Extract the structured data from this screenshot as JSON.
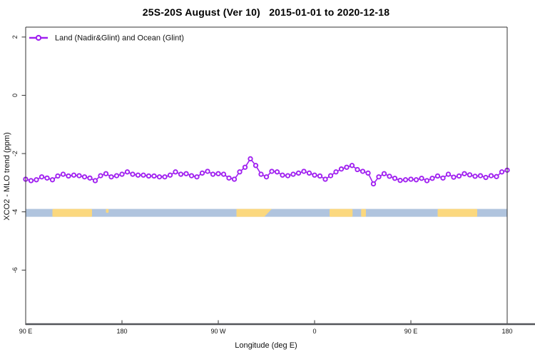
{
  "header": {
    "title": "25S-20S August (Ver 10)   2015-01-01 to 2020-12-18"
  },
  "legend": {
    "label": "Land (Nadir&Glint) and Ocean (Glint)",
    "marker": "open-circle",
    "position": "top-left"
  },
  "colors": {
    "series": "#A020F0",
    "ocean": "#B0C4DE",
    "land": "#FBD87E",
    "axis_line": "#54565a",
    "box": "#333333"
  },
  "chart_data": {
    "type": "line",
    "title": "25S-20S August (Ver 10)   2015-01-01 to 2020-12-18",
    "xlabel": "Longitude (deg E)",
    "ylabel": "XCO2 - MLO trend (ppm)",
    "xlim": [
      90,
      540
    ],
    "ylim": [
      -7.88,
      2.34
    ],
    "grid": false,
    "legend_position": "top-left",
    "x_ticks": [
      {
        "value": 90,
        "label": "90 E"
      },
      {
        "value": 180,
        "label": "180"
      },
      {
        "value": 270,
        "label": "90 W"
      },
      {
        "value": 360,
        "label": "0"
      },
      {
        "value": 450,
        "label": "90 E"
      },
      {
        "value": 540,
        "label": "180"
      }
    ],
    "y_ticks": [
      {
        "value": 2,
        "label": "2"
      },
      {
        "value": 0,
        "label": "0"
      },
      {
        "value": -2,
        "label": "-2"
      },
      {
        "value": -4,
        "label": "-4"
      },
      {
        "value": -6,
        "label": "-6"
      }
    ],
    "series": [
      {
        "name": "Land (Nadir&Glint) and Ocean (Glint)",
        "color": "#A020F0",
        "marker": "open-circle",
        "x": [
          90,
          95,
          100,
          105,
          110,
          115,
          120,
          125,
          130,
          135,
          140,
          145,
          150,
          155,
          160,
          165,
          170,
          175,
          180,
          185,
          190,
          195,
          200,
          205,
          210,
          215,
          220,
          225,
          230,
          235,
          240,
          245,
          250,
          255,
          260,
          265,
          270,
          275,
          280,
          285,
          290,
          295,
          300,
          305,
          310,
          315,
          320,
          325,
          330,
          335,
          340,
          345,
          350,
          355,
          360,
          365,
          370,
          375,
          380,
          385,
          390,
          395,
          400,
          405,
          410,
          415,
          420,
          425,
          430,
          435,
          440,
          445,
          450,
          455,
          460,
          465,
          470,
          475,
          480,
          485,
          490,
          495,
          500,
          505,
          510,
          515,
          520,
          525,
          530,
          535,
          540
        ],
        "y": [
          -2.88,
          -2.93,
          -2.9,
          -2.8,
          -2.84,
          -2.9,
          -2.77,
          -2.71,
          -2.77,
          -2.74,
          -2.76,
          -2.8,
          -2.84,
          -2.93,
          -2.76,
          -2.69,
          -2.8,
          -2.76,
          -2.71,
          -2.63,
          -2.71,
          -2.74,
          -2.74,
          -2.77,
          -2.77,
          -2.8,
          -2.8,
          -2.74,
          -2.63,
          -2.71,
          -2.69,
          -2.76,
          -2.8,
          -2.67,
          -2.61,
          -2.71,
          -2.69,
          -2.71,
          -2.84,
          -2.88,
          -2.63,
          -2.47,
          -2.18,
          -2.41,
          -2.71,
          -2.8,
          -2.61,
          -2.63,
          -2.74,
          -2.76,
          -2.71,
          -2.67,
          -2.61,
          -2.67,
          -2.74,
          -2.77,
          -2.88,
          -2.76,
          -2.63,
          -2.53,
          -2.47,
          -2.41,
          -2.55,
          -2.61,
          -2.67,
          -3.04,
          -2.8,
          -2.69,
          -2.78,
          -2.85,
          -2.92,
          -2.9,
          -2.88,
          -2.9,
          -2.85,
          -2.93,
          -2.85,
          -2.77,
          -2.84,
          -2.71,
          -2.81,
          -2.77,
          -2.69,
          -2.73,
          -2.78,
          -2.76,
          -2.82,
          -2.76,
          -2.79,
          -2.63,
          -2.57
        ]
      }
    ],
    "map_strip": {
      "description": "land/ocean strip along longitude near y=-4",
      "y_top": -3.9,
      "y_bottom": -4.17,
      "ocean_color": "#B0C4DE",
      "land_color": "#FBD87E",
      "land_segments": [
        {
          "name": "australia",
          "from": 115,
          "to": 152
        },
        {
          "name": "new-caledonia",
          "from": 165,
          "to": 167.5,
          "half": "top"
        },
        {
          "name": "south-america",
          "from": 287,
          "to": 320,
          "bottom_to": 313
        },
        {
          "name": "africa",
          "from": 374,
          "to": 395.5
        },
        {
          "name": "madagascar",
          "from": 403.5,
          "to": 408
        },
        {
          "name": "australia-wrap",
          "from": 475,
          "to": 512
        }
      ]
    }
  }
}
